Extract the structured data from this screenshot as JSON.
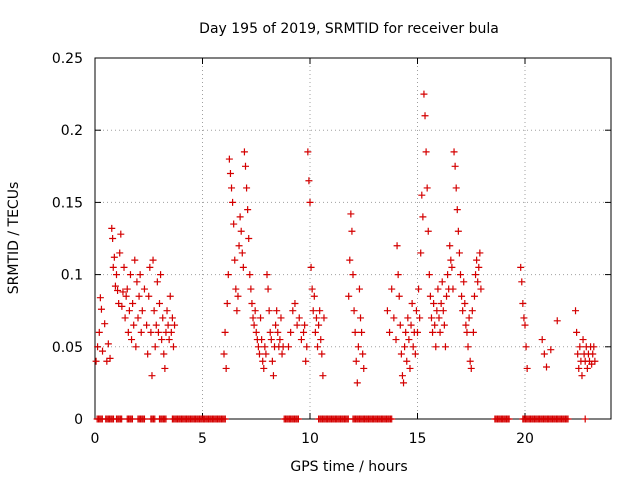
{
  "chart_data": {
    "type": "scatter",
    "title": "Day 195 of 2019, SRMTID for receiver bula",
    "xlabel": "GPS time / hours",
    "ylabel": "SRMTID / TECUs",
    "xlim": [
      0,
      24
    ],
    "ylim": [
      0,
      0.25
    ],
    "xticks": [
      0,
      5,
      10,
      15,
      20
    ],
    "xtick_labels": [
      "0",
      "5",
      "10",
      "15",
      "20"
    ],
    "yticks": [
      0,
      0.05,
      0.1,
      0.15,
      0.2,
      0.25
    ],
    "ytick_labels": [
      "0",
      "0.05",
      "0.1",
      "0.15",
      "0.2",
      "0.25"
    ],
    "grid": true,
    "marker": "+",
    "series": [
      {
        "name": "SRMTID",
        "color": "#d40000",
        "points": [
          [
            0.05,
            0.04
          ],
          [
            0.12,
            0.05
          ],
          [
            0.2,
            0.06
          ],
          [
            0.25,
            0.084
          ],
          [
            0.3,
            0.076
          ],
          [
            0.35,
            0.047
          ],
          [
            0.45,
            0.066
          ],
          [
            0.55,
            0.04
          ],
          [
            0.62,
            0.052
          ],
          [
            0.7,
            0.042
          ],
          [
            0.78,
            0.132
          ],
          [
            0.82,
            0.125
          ],
          [
            0.85,
            0.105
          ],
          [
            0.9,
            0.112
          ],
          [
            0.95,
            0.092
          ],
          [
            1.0,
            0.1
          ],
          [
            1.05,
            0.089
          ],
          [
            1.1,
            0.08
          ],
          [
            1.15,
            0.115
          ],
          [
            1.2,
            0.128
          ],
          [
            1.25,
            0.078
          ],
          [
            1.3,
            0.088
          ],
          [
            1.35,
            0.105
          ],
          [
            1.4,
            0.07
          ],
          [
            1.45,
            0.085
          ],
          [
            1.5,
            0.09
          ],
          [
            1.55,
            0.06
          ],
          [
            1.6,
            0.075
          ],
          [
            1.65,
            0.1
          ],
          [
            1.7,
            0.055
          ],
          [
            1.75,
            0.08
          ],
          [
            1.8,
            0.065
          ],
          [
            1.85,
            0.11
          ],
          [
            1.9,
            0.05
          ],
          [
            1.95,
            0.095
          ],
          [
            2.0,
            0.07
          ],
          [
            2.05,
            0.085
          ],
          [
            2.1,
            0.1
          ],
          [
            2.15,
            0.06
          ],
          [
            2.2,
            0.075
          ],
          [
            2.3,
            0.09
          ],
          [
            2.4,
            0.065
          ],
          [
            2.45,
            0.045
          ],
          [
            2.5,
            0.085
          ],
          [
            2.55,
            0.105
          ],
          [
            2.6,
            0.06
          ],
          [
            2.65,
            0.03
          ],
          [
            2.7,
            0.11
          ],
          [
            2.75,
            0.075
          ],
          [
            2.8,
            0.05
          ],
          [
            2.85,
            0.065
          ],
          [
            2.9,
            0.095
          ],
          [
            2.95,
            0.06
          ],
          [
            3.0,
            0.08
          ],
          [
            3.05,
            0.1
          ],
          [
            3.1,
            0.055
          ],
          [
            3.15,
            0.07
          ],
          [
            3.2,
            0.045
          ],
          [
            3.25,
            0.035
          ],
          [
            3.3,
            0.06
          ],
          [
            3.35,
            0.075
          ],
          [
            3.4,
            0.065
          ],
          [
            3.45,
            0.055
          ],
          [
            3.5,
            0.085
          ],
          [
            3.55,
            0.06
          ],
          [
            3.6,
            0.07
          ],
          [
            3.65,
            0.05
          ],
          [
            3.7,
            0.065
          ],
          [
            6.0,
            0.045
          ],
          [
            6.05,
            0.06
          ],
          [
            6.1,
            0.035
          ],
          [
            6.15,
            0.08
          ],
          [
            6.2,
            0.1
          ],
          [
            6.25,
            0.18
          ],
          [
            6.3,
            0.17
          ],
          [
            6.35,
            0.16
          ],
          [
            6.4,
            0.15
          ],
          [
            6.45,
            0.135
          ],
          [
            6.5,
            0.11
          ],
          [
            6.55,
            0.09
          ],
          [
            6.6,
            0.075
          ],
          [
            6.65,
            0.085
          ],
          [
            6.7,
            0.12
          ],
          [
            6.75,
            0.14
          ],
          [
            6.8,
            0.13
          ],
          [
            6.85,
            0.115
          ],
          [
            6.9,
            0.105
          ],
          [
            6.95,
            0.185
          ],
          [
            7.0,
            0.175
          ],
          [
            7.05,
            0.16
          ],
          [
            7.1,
            0.145
          ],
          [
            7.15,
            0.125
          ],
          [
            7.2,
            0.1
          ],
          [
            7.25,
            0.09
          ],
          [
            7.3,
            0.08
          ],
          [
            7.35,
            0.07
          ],
          [
            7.4,
            0.065
          ],
          [
            7.45,
            0.075
          ],
          [
            7.5,
            0.06
          ],
          [
            7.55,
            0.055
          ],
          [
            7.6,
            0.05
          ],
          [
            7.65,
            0.045
          ],
          [
            7.7,
            0.07
          ],
          [
            7.75,
            0.055
          ],
          [
            7.8,
            0.04
          ],
          [
            7.85,
            0.035
          ],
          [
            7.9,
            0.05
          ],
          [
            7.95,
            0.045
          ],
          [
            8.0,
            0.1
          ],
          [
            8.05,
            0.09
          ],
          [
            8.1,
            0.075
          ],
          [
            8.15,
            0.06
          ],
          [
            8.2,
            0.055
          ],
          [
            8.25,
            0.04
          ],
          [
            8.3,
            0.03
          ],
          [
            8.35,
            0.05
          ],
          [
            8.4,
            0.065
          ],
          [
            8.45,
            0.075
          ],
          [
            8.5,
            0.06
          ],
          [
            8.55,
            0.05
          ],
          [
            8.6,
            0.055
          ],
          [
            8.65,
            0.07
          ],
          [
            8.7,
            0.045
          ],
          [
            8.75,
            0.05
          ],
          [
            9.0,
            0.05
          ],
          [
            9.1,
            0.06
          ],
          [
            9.2,
            0.075
          ],
          [
            9.3,
            0.08
          ],
          [
            9.4,
            0.065
          ],
          [
            9.5,
            0.07
          ],
          [
            9.6,
            0.055
          ],
          [
            9.7,
            0.06
          ],
          [
            9.75,
            0.065
          ],
          [
            9.8,
            0.04
          ],
          [
            9.85,
            0.05
          ],
          [
            9.9,
            0.185
          ],
          [
            9.95,
            0.165
          ],
          [
            10.0,
            0.15
          ],
          [
            10.05,
            0.105
          ],
          [
            10.1,
            0.09
          ],
          [
            10.15,
            0.075
          ],
          [
            10.2,
            0.085
          ],
          [
            10.25,
            0.06
          ],
          [
            10.3,
            0.07
          ],
          [
            10.35,
            0.05
          ],
          [
            10.4,
            0.065
          ],
          [
            10.45,
            0.075
          ],
          [
            10.5,
            0.055
          ],
          [
            10.55,
            0.045
          ],
          [
            10.6,
            0.03
          ],
          [
            10.65,
            0.07
          ],
          [
            11.8,
            0.085
          ],
          [
            11.85,
            0.11
          ],
          [
            11.9,
            0.142
          ],
          [
            11.95,
            0.13
          ],
          [
            12.0,
            0.1
          ],
          [
            12.05,
            0.075
          ],
          [
            12.1,
            0.06
          ],
          [
            12.15,
            0.04
          ],
          [
            12.2,
            0.025
          ],
          [
            12.25,
            0.05
          ],
          [
            12.3,
            0.09
          ],
          [
            12.35,
            0.07
          ],
          [
            12.4,
            0.06
          ],
          [
            12.45,
            0.045
          ],
          [
            12.5,
            0.035
          ],
          [
            13.6,
            0.075
          ],
          [
            13.7,
            0.06
          ],
          [
            13.8,
            0.09
          ],
          [
            13.9,
            0.07
          ],
          [
            14.0,
            0.055
          ],
          [
            14.05,
            0.12
          ],
          [
            14.1,
            0.1
          ],
          [
            14.15,
            0.085
          ],
          [
            14.2,
            0.065
          ],
          [
            14.25,
            0.045
          ],
          [
            14.3,
            0.03
          ],
          [
            14.35,
            0.025
          ],
          [
            14.4,
            0.05
          ],
          [
            14.45,
            0.06
          ],
          [
            14.5,
            0.04
          ],
          [
            14.55,
            0.07
          ],
          [
            14.6,
            0.055
          ],
          [
            14.65,
            0.035
          ],
          [
            14.7,
            0.065
          ],
          [
            14.75,
            0.08
          ],
          [
            14.8,
            0.05
          ],
          [
            14.85,
            0.06
          ],
          [
            14.9,
            0.045
          ],
          [
            14.95,
            0.075
          ],
          [
            15.0,
            0.06
          ],
          [
            15.05,
            0.09
          ],
          [
            15.1,
            0.07
          ],
          [
            15.15,
            0.115
          ],
          [
            15.2,
            0.155
          ],
          [
            15.25,
            0.14
          ],
          [
            15.3,
            0.225
          ],
          [
            15.35,
            0.21
          ],
          [
            15.4,
            0.185
          ],
          [
            15.45,
            0.16
          ],
          [
            15.5,
            0.13
          ],
          [
            15.55,
            0.1
          ],
          [
            15.6,
            0.085
          ],
          [
            15.65,
            0.07
          ],
          [
            15.7,
            0.06
          ],
          [
            15.75,
            0.08
          ],
          [
            15.8,
            0.065
          ],
          [
            15.85,
            0.05
          ],
          [
            15.9,
            0.075
          ],
          [
            15.95,
            0.09
          ],
          [
            16.0,
            0.07
          ],
          [
            16.05,
            0.06
          ],
          [
            16.1,
            0.08
          ],
          [
            16.15,
            0.095
          ],
          [
            16.2,
            0.075
          ],
          [
            16.25,
            0.065
          ],
          [
            16.3,
            0.05
          ],
          [
            16.35,
            0.085
          ],
          [
            16.4,
            0.1
          ],
          [
            16.45,
            0.09
          ],
          [
            16.5,
            0.12
          ],
          [
            16.55,
            0.11
          ],
          [
            16.6,
            0.105
          ],
          [
            16.65,
            0.09
          ],
          [
            16.7,
            0.185
          ],
          [
            16.75,
            0.175
          ],
          [
            16.8,
            0.16
          ],
          [
            16.85,
            0.145
          ],
          [
            16.9,
            0.13
          ],
          [
            16.95,
            0.115
          ],
          [
            17.0,
            0.1
          ],
          [
            17.05,
            0.085
          ],
          [
            17.1,
            0.075
          ],
          [
            17.15,
            0.095
          ],
          [
            17.2,
            0.08
          ],
          [
            17.25,
            0.065
          ],
          [
            17.3,
            0.06
          ],
          [
            17.35,
            0.05
          ],
          [
            17.4,
            0.07
          ],
          [
            17.45,
            0.04
          ],
          [
            17.5,
            0.035
          ],
          [
            17.55,
            0.075
          ],
          [
            17.6,
            0.06
          ],
          [
            17.65,
            0.085
          ],
          [
            17.7,
            0.1
          ],
          [
            17.75,
            0.11
          ],
          [
            17.8,
            0.095
          ],
          [
            17.85,
            0.105
          ],
          [
            17.9,
            0.115
          ],
          [
            17.95,
            0.09
          ],
          [
            19.8,
            0.105
          ],
          [
            19.85,
            0.095
          ],
          [
            19.9,
            0.08
          ],
          [
            19.95,
            0.07
          ],
          [
            20.0,
            0.065
          ],
          [
            20.05,
            0.05
          ],
          [
            20.1,
            0.035
          ],
          [
            20.8,
            0.055
          ],
          [
            20.9,
            0.045
          ],
          [
            21.0,
            0.036
          ],
          [
            21.2,
            0.048
          ],
          [
            21.5,
            0.068
          ],
          [
            22.35,
            0.075
          ],
          [
            22.4,
            0.06
          ],
          [
            22.45,
            0.045
          ],
          [
            22.5,
            0.035
          ],
          [
            22.55,
            0.05
          ],
          [
            22.6,
            0.04
          ],
          [
            22.65,
            0.03
          ],
          [
            22.7,
            0.055
          ],
          [
            22.75,
            0.045
          ],
          [
            22.8,
            0.04
          ],
          [
            22.85,
            0.05
          ],
          [
            22.9,
            0.035
          ],
          [
            22.95,
            0.045
          ],
          [
            23.0,
            0.04
          ],
          [
            23.05,
            0.05
          ],
          [
            23.1,
            0.038
          ],
          [
            23.15,
            0.045
          ],
          [
            23.2,
            0.05
          ],
          [
            23.25,
            0.04
          ]
        ],
        "zero_ranges": [
          [
            0.1,
            0.35
          ],
          [
            0.5,
            0.9
          ],
          [
            1.0,
            1.25
          ],
          [
            1.5,
            1.75
          ],
          [
            2.0,
            2.3
          ],
          [
            2.6,
            2.8
          ],
          [
            3.0,
            3.35
          ],
          [
            3.6,
            6.1
          ],
          [
            8.8,
            9.5
          ],
          [
            10.4,
            11.8
          ],
          [
            12.0,
            13.8
          ],
          [
            18.6,
            19.3
          ],
          [
            19.9,
            22.0
          ],
          [
            22.8,
            22.8
          ]
        ]
      }
    ]
  }
}
